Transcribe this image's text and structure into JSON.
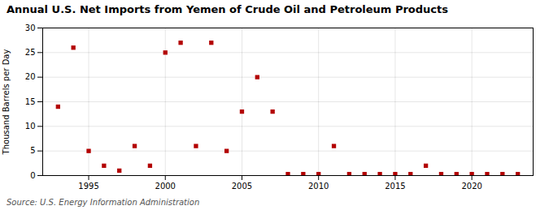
{
  "chart_data": {
    "type": "scatter",
    "title": "Annual U.S. Net Imports from Yemen of Crude Oil and Petroleum Products",
    "ylabel": "Thousand Barrels per Day",
    "annotations": [
      "Source: U.S. Energy Information Administration"
    ],
    "x": [
      1993,
      1994,
      1995,
      1996,
      1997,
      1998,
      1999,
      2000,
      2001,
      2002,
      2003,
      2004,
      2005,
      2006,
      2007,
      2008,
      2009,
      2010,
      2011,
      2012,
      2013,
      2014,
      2015,
      2016,
      2017,
      2018,
      2019,
      2020,
      2021,
      2022,
      2023
    ],
    "values": [
      14,
      26,
      5,
      2,
      1,
      6,
      2,
      25,
      27,
      6,
      27,
      5,
      13,
      20,
      13,
      0.3,
      0.3,
      0.3,
      6,
      0.3,
      0.3,
      0.3,
      0.3,
      0.3,
      2,
      0.3,
      0.3,
      0.3,
      0.3,
      0.3,
      0.3
    ],
    "color": "#b30000",
    "marker": "square",
    "xlim": [
      1992,
      2024
    ],
    "xticks": [
      1995,
      2000,
      2005,
      2010,
      2015,
      2020
    ],
    "ylim": [
      0,
      30
    ],
    "yticks": [
      0,
      5,
      10,
      15,
      20,
      25,
      30
    ],
    "grid": true
  }
}
